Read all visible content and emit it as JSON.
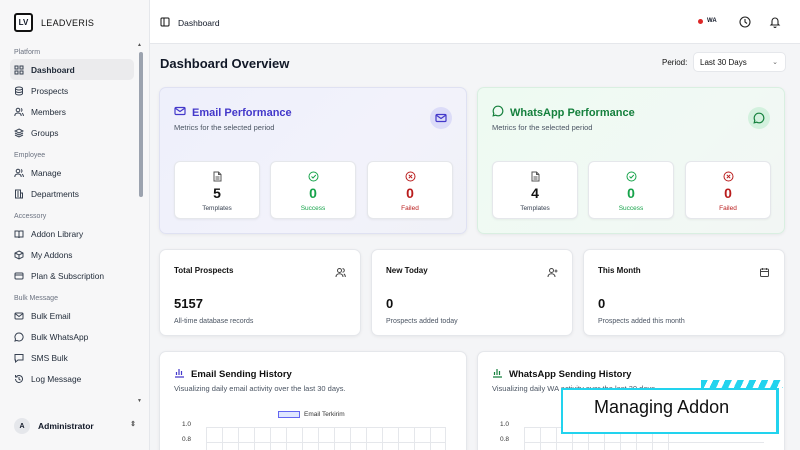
{
  "brand": {
    "logo_text": "LV",
    "name": "LEADVERIS"
  },
  "sidebar": {
    "sections": [
      {
        "title": "Platform",
        "items": [
          "Dashboard",
          "Prospects",
          "Members",
          "Groups"
        ]
      },
      {
        "title": "Employee",
        "items": [
          "Manage",
          "Departments"
        ]
      },
      {
        "title": "Accessory",
        "items": [
          "Addon Library",
          "My Addons",
          "Plan & Subscription"
        ]
      },
      {
        "title": "Bulk Message",
        "items": [
          "Bulk Email",
          "Bulk WhatsApp",
          "SMS Bulk",
          "Log Message"
        ]
      }
    ],
    "user": {
      "initial": "A",
      "name": "Administrator"
    }
  },
  "topbar": {
    "breadcrumb": "Dashboard",
    "badge": "WA"
  },
  "main": {
    "title": "Dashboard Overview",
    "period_label": "Period:",
    "period_value": "Last 30 Days",
    "email_perf": {
      "title": "Email Performance",
      "subtitle": "Metrics for the selected period",
      "stats": [
        {
          "value": "5",
          "label": "Templates"
        },
        {
          "value": "0",
          "label": "Success"
        },
        {
          "value": "0",
          "label": "Failed"
        }
      ]
    },
    "wa_perf": {
      "title": "WhatsApp Performance",
      "subtitle": "Metrics for the selected period",
      "stats": [
        {
          "value": "4",
          "label": "Templates"
        },
        {
          "value": "0",
          "label": "Success"
        },
        {
          "value": "0",
          "label": "Failed"
        }
      ]
    },
    "summary": [
      {
        "title": "Total Prospects",
        "value": "5157",
        "sub": "All-time database records"
      },
      {
        "title": "New Today",
        "value": "0",
        "sub": "Prospects added today"
      },
      {
        "title": "This Month",
        "value": "0",
        "sub": "Prospects added this month"
      }
    ],
    "email_history": {
      "title": "Email Sending History",
      "subtitle": "Visualizing daily email activity over the last 30 days.",
      "legend": "Email Terkirim",
      "y_ticks": [
        "1.0",
        "0.8"
      ]
    },
    "wa_history": {
      "title": "WhatsApp Sending History",
      "subtitle": "Visualizing daily WA activity over the last 30 days.",
      "y_ticks": [
        "1.0",
        "0.8"
      ]
    }
  },
  "overlay": {
    "text": "Managing Addon"
  },
  "colors": {
    "email_accent": "#4338ca",
    "wa_accent": "#15803d",
    "success": "#16a34a",
    "failed": "#b91c1c",
    "overlay": "#22d3ee"
  }
}
